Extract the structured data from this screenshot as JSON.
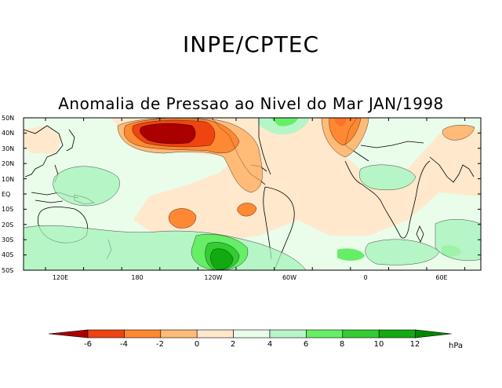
{
  "header": {
    "organization": "INPE/CPTEC",
    "map_title": "Anomalia de Pressao ao Nivel do Mar JAN/1998"
  },
  "axes": {
    "lat_labels": [
      "50N",
      "40N",
      "30N",
      "20N",
      "10N",
      "EQ",
      "10S",
      "20S",
      "30S",
      "40S",
      "50S"
    ],
    "lon_labels": [
      "120E",
      "180",
      "120W",
      "60W",
      "0",
      "60E"
    ]
  },
  "colorbar": {
    "unit": "hPa",
    "levels": [
      "-6",
      "-4",
      "-2",
      "0",
      "2",
      "4",
      "6",
      "8",
      "10",
      "12"
    ],
    "colors": [
      "#aa0000",
      "#ee4411",
      "#ff8833",
      "#ffbb77",
      "#ffe8cc",
      "#eafcea",
      "#b6f5c6",
      "#66ee66",
      "#33cc33",
      "#11aa11",
      "#008800"
    ]
  }
}
